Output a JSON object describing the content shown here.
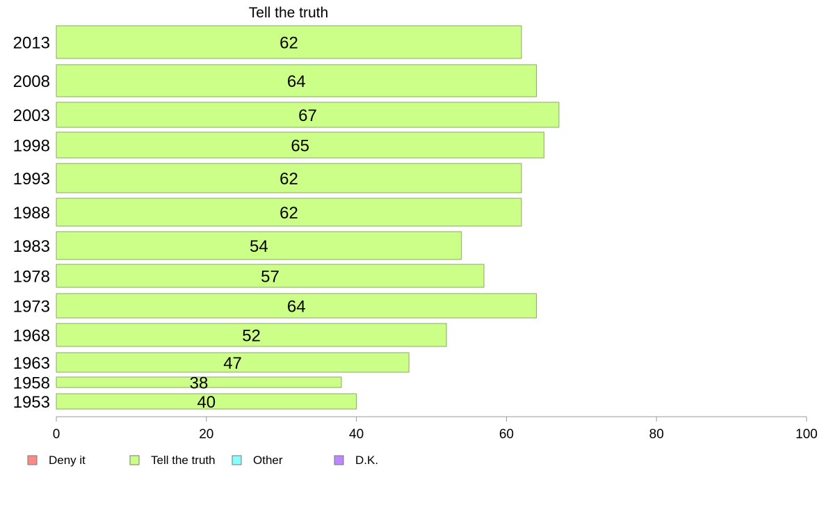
{
  "chart_data": {
    "type": "bar",
    "orientation": "horizontal",
    "title": "Tell the truth",
    "categories": [
      "2013",
      "2008",
      "2003",
      "1998",
      "1993",
      "1988",
      "1983",
      "1978",
      "1973",
      "1968",
      "1963",
      "1958",
      "1953"
    ],
    "series": [
      {
        "name": "Tell the truth",
        "color": "#ccff88",
        "values": [
          62,
          64,
          67,
          65,
          62,
          62,
          54,
          57,
          64,
          52,
          47,
          38,
          40
        ],
        "value_labels": [
          "62",
          "64",
          "67",
          "65",
          "62",
          "62",
          "54",
          "57",
          "64",
          "52",
          "47",
          "38",
          "40"
        ]
      }
    ],
    "xlim": [
      0,
      100
    ],
    "xticks": [
      "0",
      "20",
      "40",
      "60",
      "80",
      "100"
    ],
    "grid": false,
    "legend": {
      "placement": "bottom-left",
      "entries": [
        {
          "label": "Deny it",
          "color": "#ff8888"
        },
        {
          "label": "Tell the truth",
          "color": "#ccff88"
        },
        {
          "label": "Other",
          "color": "#88ffff"
        },
        {
          "label": "D.K.",
          "color": "#bb88ff"
        }
      ]
    }
  }
}
